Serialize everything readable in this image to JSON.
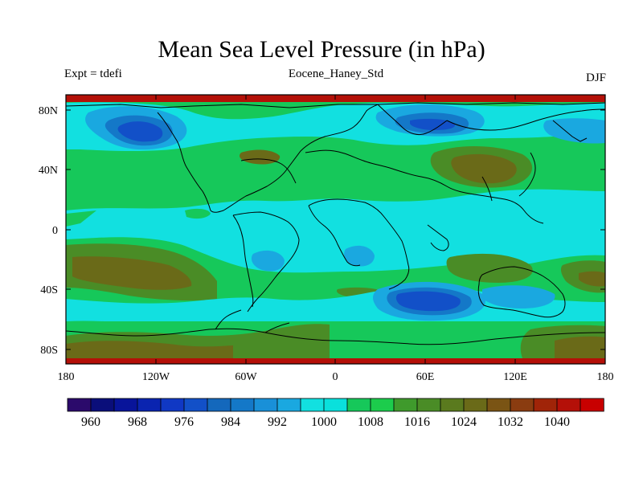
{
  "title": "Mean Sea Level Pressure (in hPa)",
  "subtitle_left": "Expt = tdefi",
  "subtitle_center": "Eocene_Haney_Std",
  "subtitle_right": "DJF",
  "map": {
    "projection": "cylindrical-equidistant",
    "lon_range": [
      -180,
      180
    ],
    "lat_range": [
      -90,
      90
    ],
    "lat_tick_labels": [
      "80N",
      "40N",
      "0",
      "40S",
      "80S"
    ],
    "lon_tick_labels": [
      "180",
      "120W",
      "60W",
      "0",
      "60E",
      "120E",
      "180"
    ]
  },
  "colorbar": {
    "labels": [
      "960",
      "968",
      "976",
      "984",
      "992",
      "1000",
      "1008",
      "1016",
      "1024",
      "1032",
      "1040"
    ],
    "levels": [
      956,
      960,
      964,
      968,
      972,
      976,
      980,
      984,
      988,
      992,
      996,
      1000,
      1004,
      1008,
      1012,
      1016,
      1020,
      1024,
      1028,
      1032,
      1036,
      1040
    ],
    "colors": [
      "#2b0a6b",
      "#0a0e7a",
      "#08149a",
      "#0a24b0",
      "#1038c4",
      "#1250c8",
      "#1468bc",
      "#1478c8",
      "#1990d8",
      "#1aa8e0",
      "#12e0e0",
      "#0ae0dc",
      "#16c85a",
      "#1ccc4c",
      "#3f9a2c",
      "#4a8c26",
      "#5a7a1e",
      "#6a6a18",
      "#7a5414",
      "#8a3c10",
      "#a02408",
      "#b41008",
      "#c80000"
    ]
  },
  "colors": {
    "deep_low": "#1250c8",
    "low": "#1478c8",
    "mid_low": "#1aa8e0",
    "normal": "#12e0e0",
    "mid_high": "#16c85a",
    "high": "#4a8c26",
    "very_high": "#6a6a18",
    "extreme": "#c80000"
  }
}
